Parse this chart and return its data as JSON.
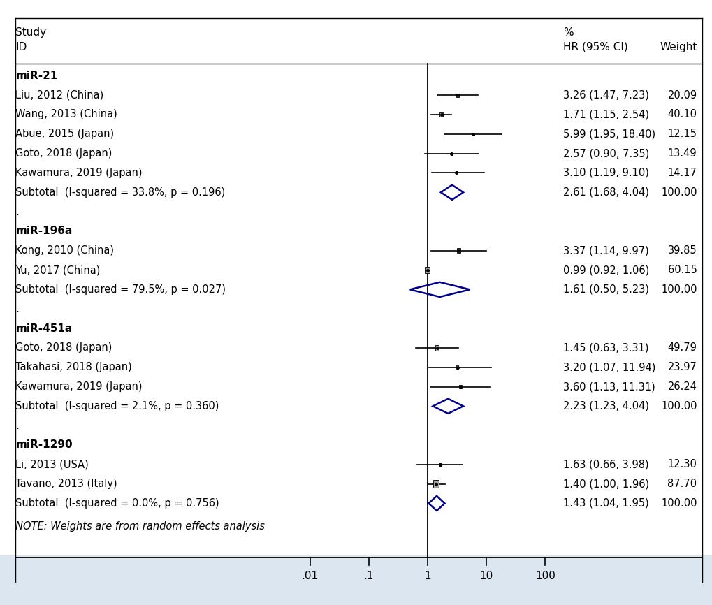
{
  "bg_color_main": "#ffffff",
  "bg_color_bottom": "#dce6f1",
  "studies": [
    {
      "label": "miR-21",
      "hr": null,
      "lo": null,
      "hi": null,
      "weight": null,
      "type": "header"
    },
    {
      "label": "Liu, 2012 (China)",
      "hr": 3.26,
      "lo": 1.47,
      "hi": 7.23,
      "weight": 20.09,
      "type": "study"
    },
    {
      "label": "Wang, 2013 (China)",
      "hr": 1.71,
      "lo": 1.15,
      "hi": 2.54,
      "weight": 40.1,
      "type": "study"
    },
    {
      "label": "Abue, 2015 (Japan)",
      "hr": 5.99,
      "lo": 1.95,
      "hi": 18.4,
      "weight": 12.15,
      "type": "study"
    },
    {
      "label": "Goto, 2018 (Japan)",
      "hr": 2.57,
      "lo": 0.9,
      "hi": 7.35,
      "weight": 13.49,
      "type": "study"
    },
    {
      "label": "Kawamura, 2019 (Japan)",
      "hr": 3.1,
      "lo": 1.19,
      "hi": 9.1,
      "weight": 14.17,
      "type": "study"
    },
    {
      "label": "Subtotal  (I-squared = 33.8%, p = 0.196)",
      "hr": 2.61,
      "lo": 1.68,
      "hi": 4.04,
      "weight": 100.0,
      "type": "subtotal"
    },
    {
      "label": ".",
      "hr": null,
      "lo": null,
      "hi": null,
      "weight": null,
      "type": "dot"
    },
    {
      "label": "miR-196a",
      "hr": null,
      "lo": null,
      "hi": null,
      "weight": null,
      "type": "header"
    },
    {
      "label": "Kong, 2010 (China)",
      "hr": 3.37,
      "lo": 1.14,
      "hi": 9.97,
      "weight": 39.85,
      "type": "study"
    },
    {
      "label": "Yu, 2017 (China)",
      "hr": 0.99,
      "lo": 0.92,
      "hi": 1.06,
      "weight": 60.15,
      "type": "study"
    },
    {
      "label": "Subtotal  (I-squared = 79.5%, p = 0.027)",
      "hr": 1.61,
      "lo": 0.5,
      "hi": 5.23,
      "weight": 100.0,
      "type": "subtotal"
    },
    {
      "label": ".",
      "hr": null,
      "lo": null,
      "hi": null,
      "weight": null,
      "type": "dot"
    },
    {
      "label": "miR-451a",
      "hr": null,
      "lo": null,
      "hi": null,
      "weight": null,
      "type": "header"
    },
    {
      "label": "Goto, 2018 (Japan)",
      "hr": 1.45,
      "lo": 0.63,
      "hi": 3.31,
      "weight": 49.79,
      "type": "study"
    },
    {
      "label": "Takahasi, 2018 (Japan)",
      "hr": 3.2,
      "lo": 1.07,
      "hi": 11.94,
      "weight": 23.97,
      "type": "study"
    },
    {
      "label": "Kawamura, 2019 (Japan)",
      "hr": 3.6,
      "lo": 1.13,
      "hi": 11.31,
      "weight": 26.24,
      "type": "study"
    },
    {
      "label": "Subtotal  (I-squared = 2.1%, p = 0.360)",
      "hr": 2.23,
      "lo": 1.23,
      "hi": 4.04,
      "weight": 100.0,
      "type": "subtotal"
    },
    {
      "label": ".",
      "hr": null,
      "lo": null,
      "hi": null,
      "weight": null,
      "type": "dot"
    },
    {
      "label": "miR-1290",
      "hr": null,
      "lo": null,
      "hi": null,
      "weight": null,
      "type": "header"
    },
    {
      "label": "Li, 2013 (USA)",
      "hr": 1.63,
      "lo": 0.66,
      "hi": 3.98,
      "weight": 12.3,
      "type": "study"
    },
    {
      "label": "Tavano, 2013 (Italy)",
      "hr": 1.4,
      "lo": 1.0,
      "hi": 1.96,
      "weight": 87.7,
      "type": "study"
    },
    {
      "label": "Subtotal  (I-squared = 0.0%, p = 0.756)",
      "hr": 1.43,
      "lo": 1.04,
      "hi": 1.95,
      "weight": 100.0,
      "type": "subtotal"
    }
  ],
  "hr_texts": [
    "3.26 (1.47, 7.23)",
    "1.71 (1.15, 2.54)",
    "5.99 (1.95, 18.40)",
    "2.57 (0.90, 7.35)",
    "3.10 (1.19, 9.10)",
    "2.61 (1.68, 4.04)",
    "3.37 (1.14, 9.97)",
    "0.99 (0.92, 1.06)",
    "1.61 (0.50, 5.23)",
    "1.45 (0.63, 3.31)",
    "3.20 (1.07, 11.94)",
    "3.60 (1.13, 11.31)",
    "2.23 (1.23, 4.04)",
    "1.63 (0.66, 3.98)",
    "1.40 (1.00, 1.96)",
    "1.43 (1.04, 1.95)"
  ],
  "weight_texts": [
    "20.09",
    "40.10",
    "12.15",
    "13.49",
    "14.17",
    "100.00",
    "39.85",
    "60.15",
    "100.00",
    "49.79",
    "23.97",
    "26.24",
    "100.00",
    "12.30",
    "87.70",
    "100.00"
  ],
  "note": "NOTE: Weights are from random effects analysis",
  "x_ticks": [
    0.01,
    0.1,
    1,
    10,
    100
  ],
  "x_tick_labels": [
    ".01",
    ".1",
    "1",
    "10",
    "100"
  ],
  "diamond_color": "#00008B",
  "square_color": "#a0a0a0",
  "title_line1": "Study",
  "title_line2": "ID",
  "col_hr": "HR (95% CI)",
  "col_pct": "%",
  "col_weight": "Weight",
  "fontsize": 11,
  "fontsize_small": 10.5
}
